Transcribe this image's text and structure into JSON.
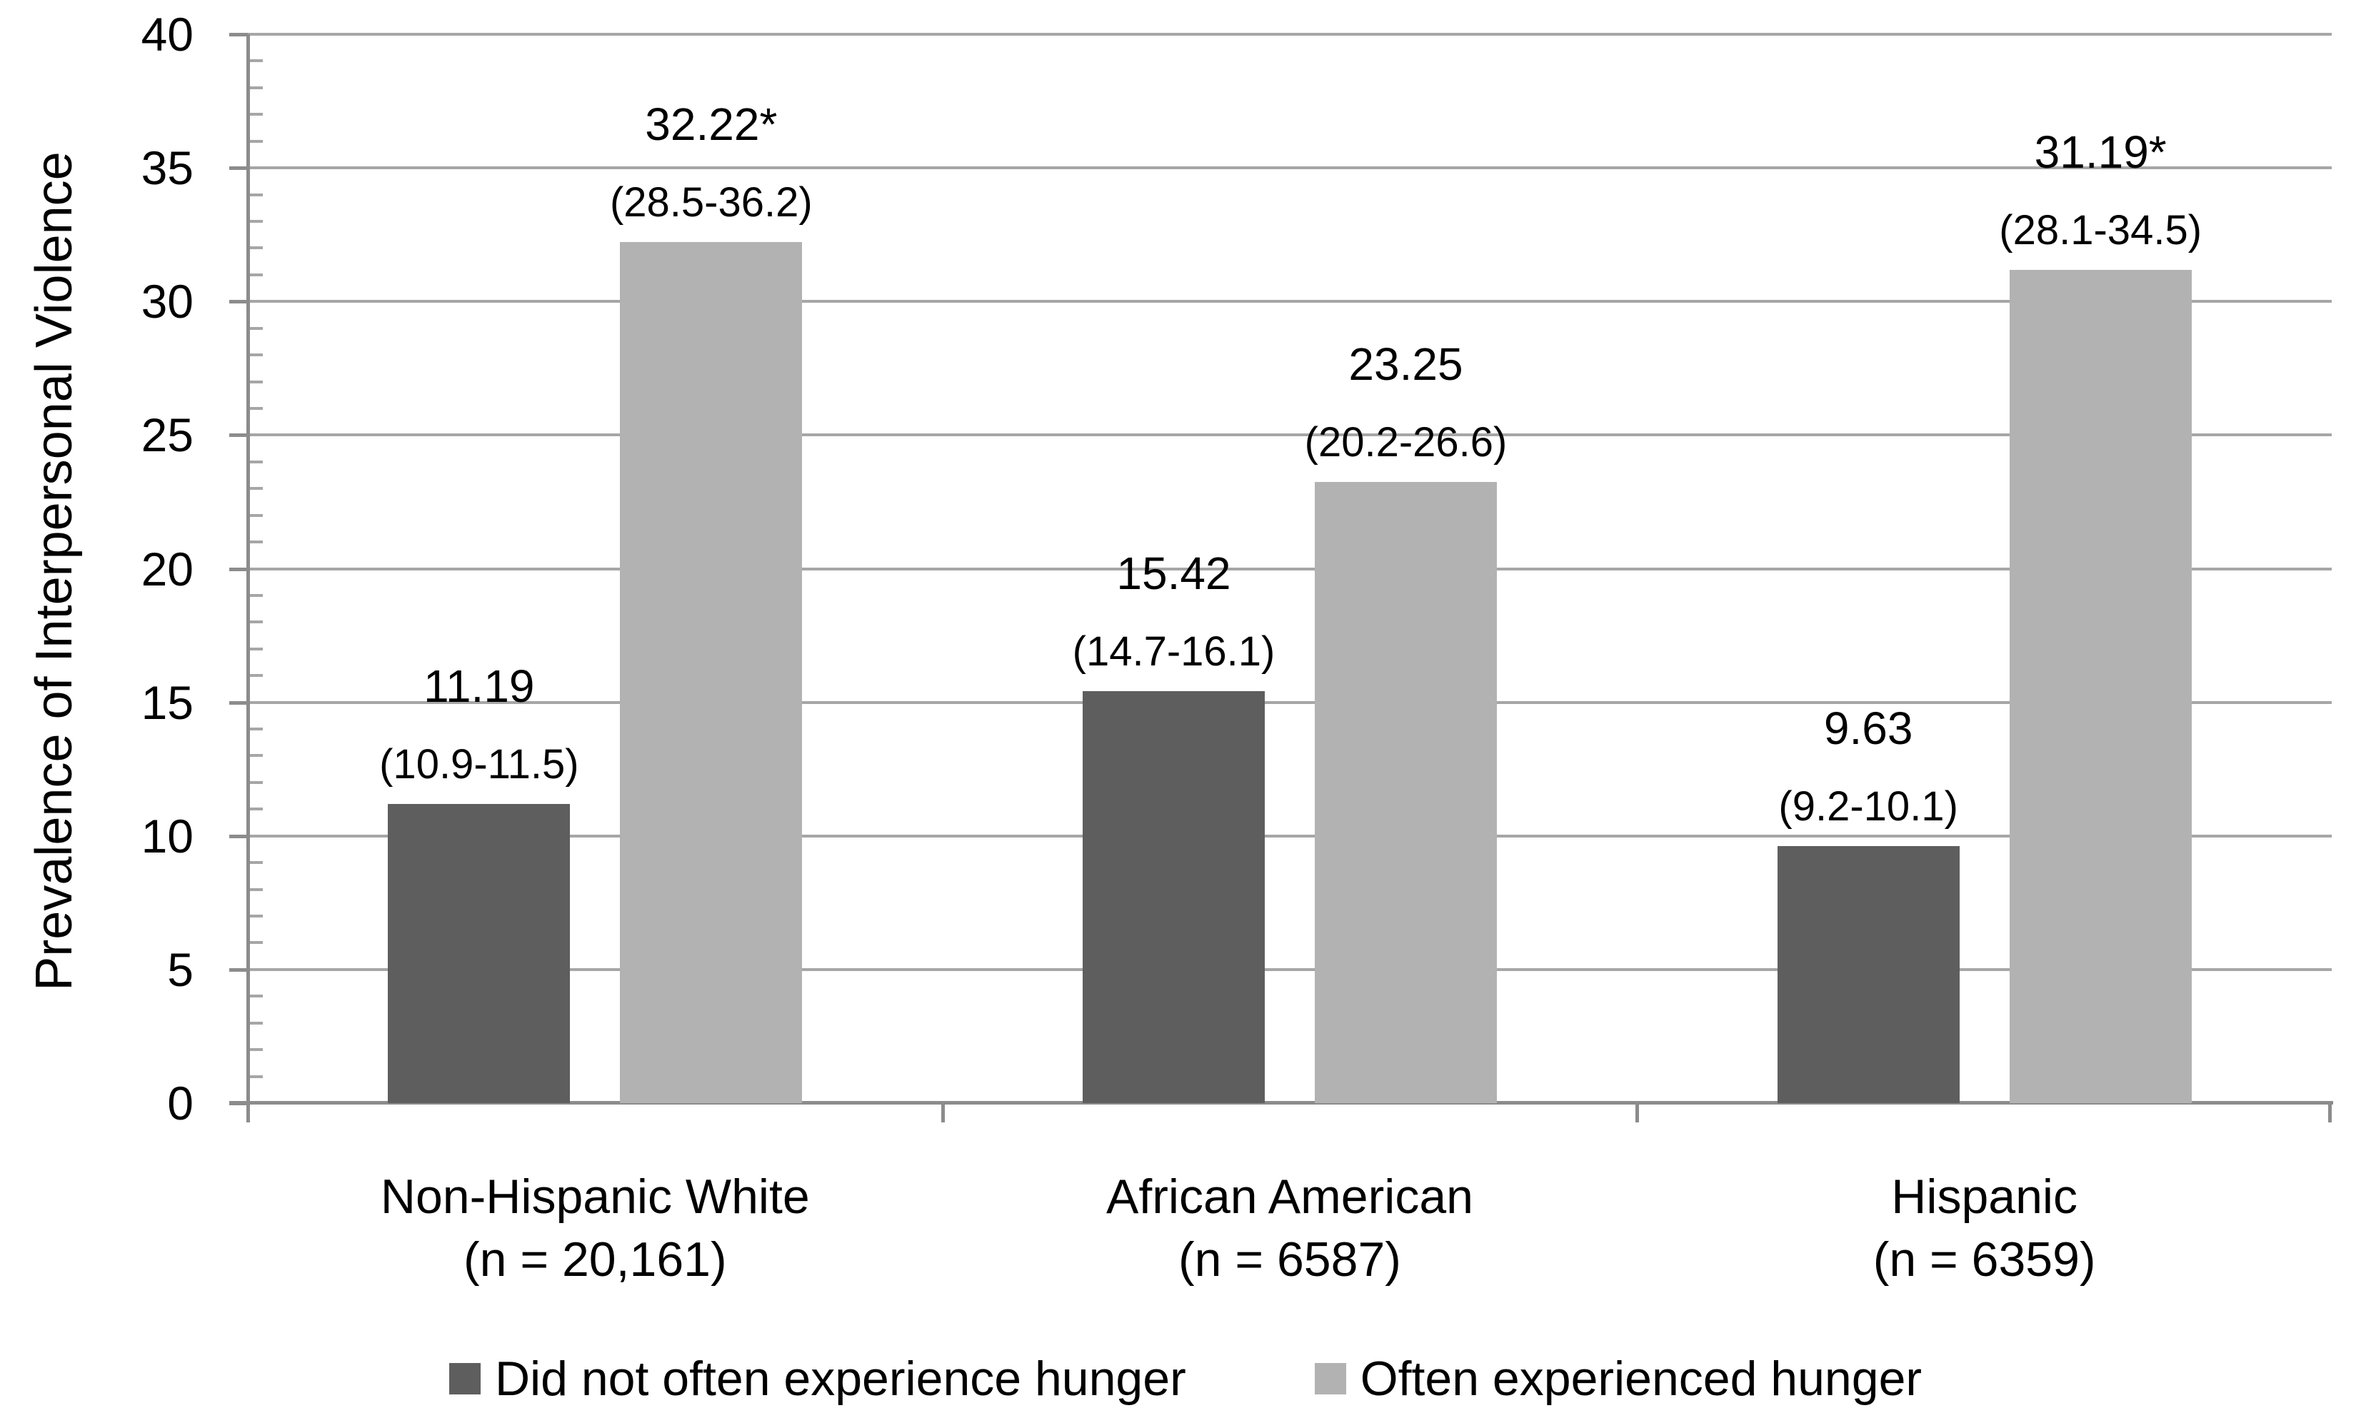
{
  "chart_data": {
    "type": "bar",
    "title": "",
    "ylabel": "Prevalence of Interpersonal Violence",
    "xlabel": "",
    "ylim": [
      0,
      40
    ],
    "y_major_tick_step": 5,
    "y_minor_tick_step": 1,
    "y_tick_labels": [
      "0",
      "5",
      "10",
      "15",
      "20",
      "25",
      "30",
      "35",
      "40"
    ],
    "grid": true,
    "legend_position": "bottom",
    "categories": [
      "Non-Hispanic White",
      "African American",
      "Hispanic"
    ],
    "category_sublabels": [
      "(n = 20,161)",
      "(n = 6587)",
      "(n = 6359)"
    ],
    "series": [
      {
        "name": "Did not often experience hunger",
        "color": "#5e5e5e",
        "values": [
          11.19,
          15.42,
          9.63
        ],
        "value_labels": [
          "11.19",
          "15.42",
          "9.63"
        ],
        "ci_labels": [
          "(10.9-11.5)",
          "(14.7-16.1)",
          "(9.2-10.1)"
        ]
      },
      {
        "name": "Often experienced hunger",
        "color": "#b2b2b2",
        "values": [
          32.22,
          23.25,
          31.19
        ],
        "value_labels": [
          "32.22*",
          "23.25",
          "31.19*"
        ],
        "ci_labels": [
          "(28.5-36.2)",
          "(20.2-26.6)",
          "(28.1-34.5)"
        ]
      }
    ],
    "gridline_color": "#a6a6a6",
    "axis_color": "#8c8c8c",
    "text_color": "#000000",
    "background_color": "#ffffff"
  }
}
